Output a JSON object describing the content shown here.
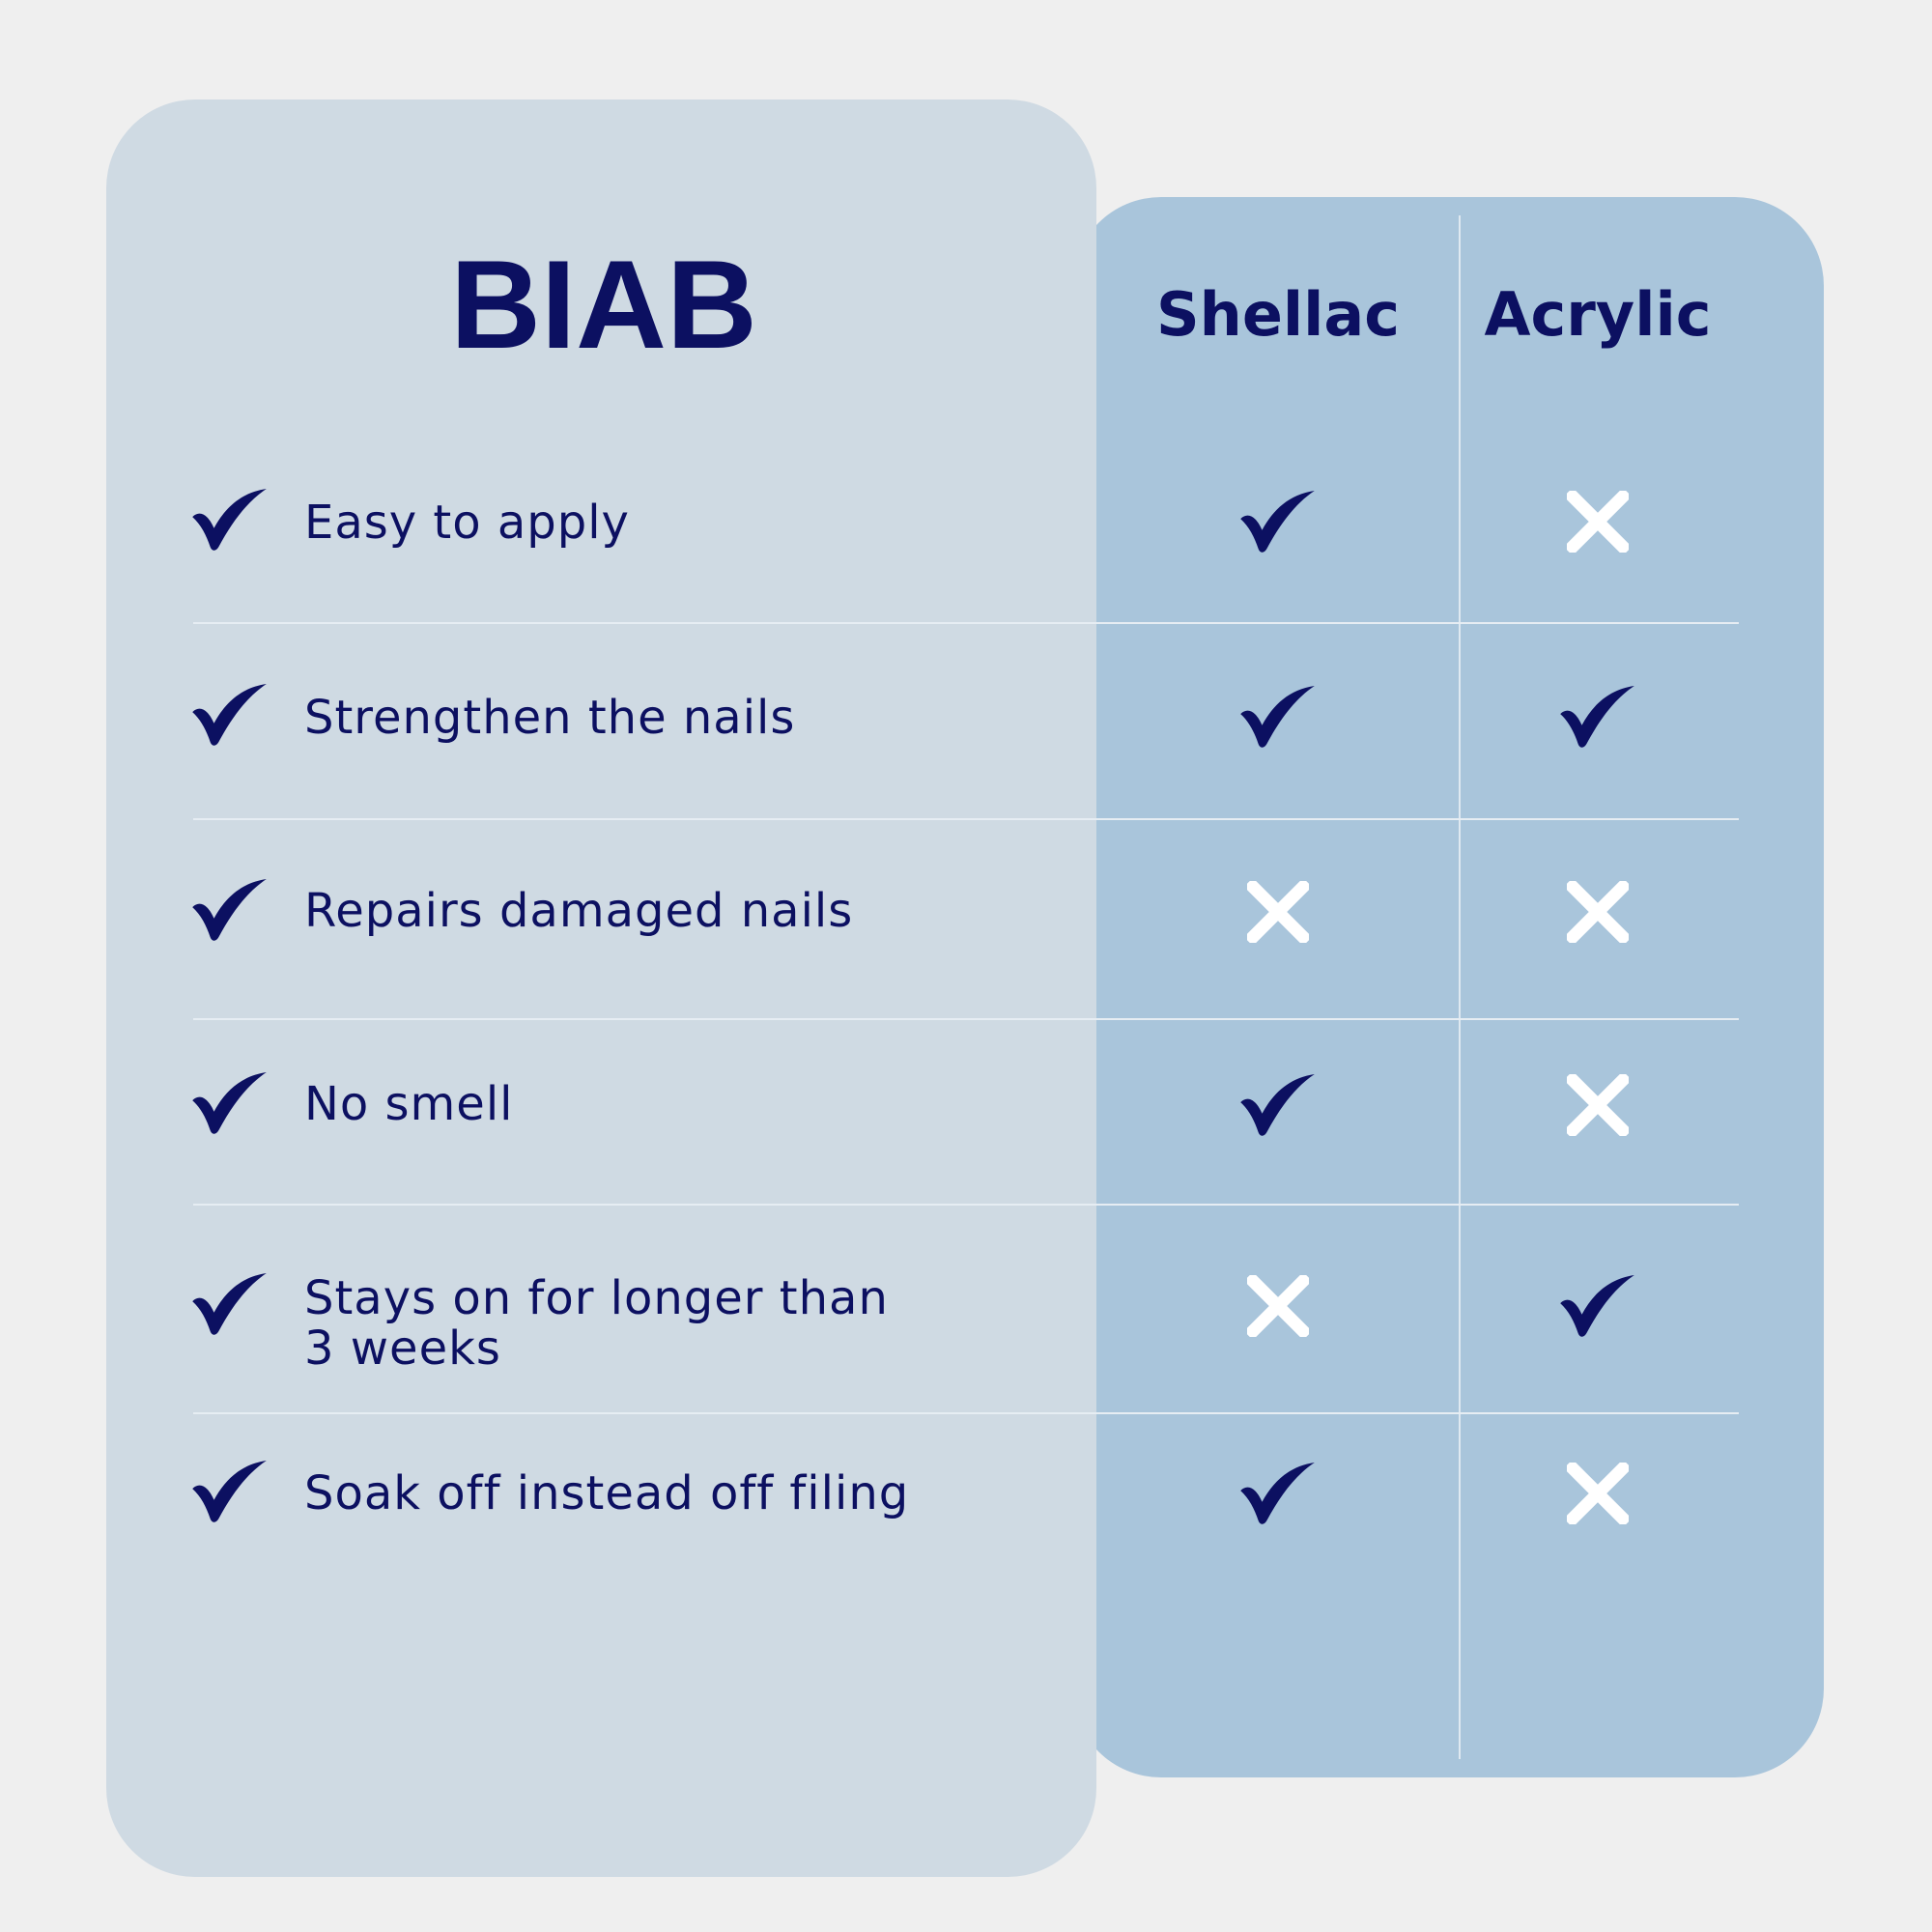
{
  "title": "BIAB",
  "columns": [
    "Shellac",
    "Acrylic"
  ],
  "colors": {
    "navy": "#0c1061",
    "left_card": "#cfdae3",
    "right_card": "#a9c5db",
    "background": "#efefef",
    "cross": "#ffffff"
  },
  "rows": [
    {
      "feature": "Easy to apply",
      "biab": "check",
      "shellac": "check",
      "acrylic": "cross"
    },
    {
      "feature": "Strengthen the nails",
      "biab": "check",
      "shellac": "check",
      "acrylic": "check"
    },
    {
      "feature": "Repairs damaged nails",
      "biab": "check",
      "shellac": "cross",
      "acrylic": "cross"
    },
    {
      "feature": "No smell",
      "biab": "check",
      "shellac": "check",
      "acrylic": "cross"
    },
    {
      "feature": "Stays on for longer than 3 weeks",
      "biab": "check",
      "shellac": "cross",
      "acrylic": "check"
    },
    {
      "feature": "Soak off instead off filing",
      "biab": "check",
      "shellac": "check",
      "acrylic": "cross"
    }
  ]
}
